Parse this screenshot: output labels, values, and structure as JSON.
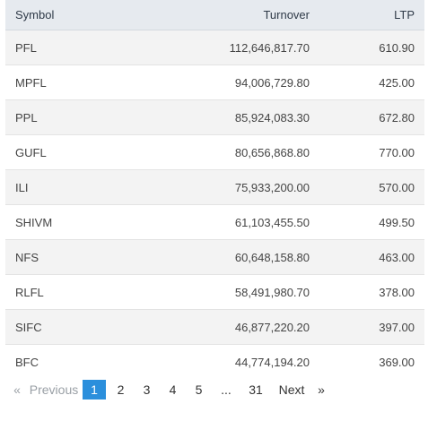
{
  "table": {
    "headers": {
      "symbol": "Symbol",
      "turnover": "Turnover",
      "ltp": "LTP"
    },
    "rows": [
      {
        "symbol": "PFL",
        "turnover": "112,646,817.70",
        "ltp": "610.90"
      },
      {
        "symbol": "MPFL",
        "turnover": "94,006,729.80",
        "ltp": "425.00"
      },
      {
        "symbol": "PPL",
        "turnover": "85,924,083.30",
        "ltp": "672.80"
      },
      {
        "symbol": "GUFL",
        "turnover": "80,656,868.80",
        "ltp": "770.00"
      },
      {
        "symbol": "ILI",
        "turnover": "75,933,200.00",
        "ltp": "570.00"
      },
      {
        "symbol": "SHIVM",
        "turnover": "61,103,455.50",
        "ltp": "499.50"
      },
      {
        "symbol": "NFS",
        "turnover": "60,648,158.80",
        "ltp": "463.00"
      },
      {
        "symbol": "RLFL",
        "turnover": "58,491,980.70",
        "ltp": "378.00"
      },
      {
        "symbol": "SIFC",
        "turnover": "46,877,220.20",
        "ltp": "397.00"
      },
      {
        "symbol": "BFC",
        "turnover": "44,774,194.20",
        "ltp": "369.00"
      }
    ]
  },
  "pagination": {
    "first_arrow": "«",
    "previous_label": "Previous",
    "pages": [
      "1",
      "2",
      "3",
      "4",
      "5"
    ],
    "ellipsis": "...",
    "last_page": "31",
    "next_label": "Next",
    "next_arrow": "»",
    "active_color": "#2b8fdc"
  }
}
